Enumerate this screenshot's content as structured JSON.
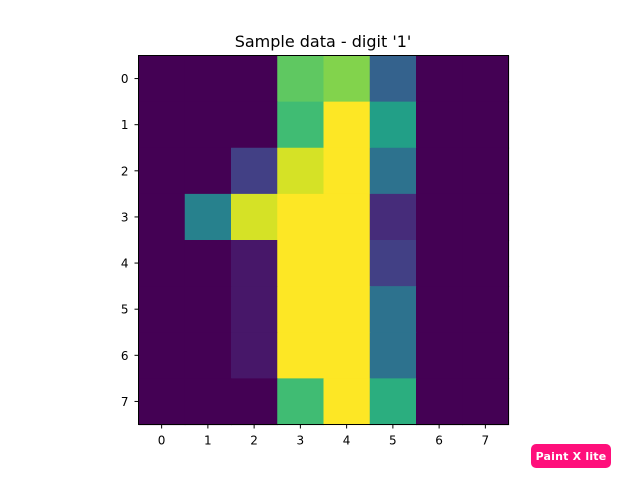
{
  "chart_data": {
    "type": "heatmap",
    "title": "Sample data - digit '1'",
    "xlabel": "",
    "ylabel": "",
    "x_ticks": [
      "0",
      "1",
      "2",
      "3",
      "4",
      "5",
      "6",
      "7"
    ],
    "y_ticks": [
      "0",
      "1",
      "2",
      "3",
      "4",
      "5",
      "6",
      "7"
    ],
    "colormap": "viridis",
    "vmin": 0,
    "vmax": 16,
    "grid": false,
    "values": [
      [
        0,
        0,
        0,
        12,
        13,
        5,
        0,
        0
      ],
      [
        0,
        0,
        0,
        11,
        16,
        9,
        0,
        0
      ],
      [
        0,
        0,
        3,
        15,
        16,
        6,
        0,
        0
      ],
      [
        0,
        7,
        15,
        16,
        16,
        2,
        0,
        0
      ],
      [
        0,
        0,
        1,
        16,
        16,
        3,
        0,
        0
      ],
      [
        0,
        0,
        1,
        16,
        16,
        6,
        0,
        0
      ],
      [
        0,
        0,
        1,
        16,
        16,
        6,
        0,
        0
      ],
      [
        0,
        0,
        0,
        11,
        16,
        10,
        0,
        0
      ]
    ]
  },
  "watermark": {
    "text": "Paint X lite",
    "color": "#ff0f7b"
  }
}
